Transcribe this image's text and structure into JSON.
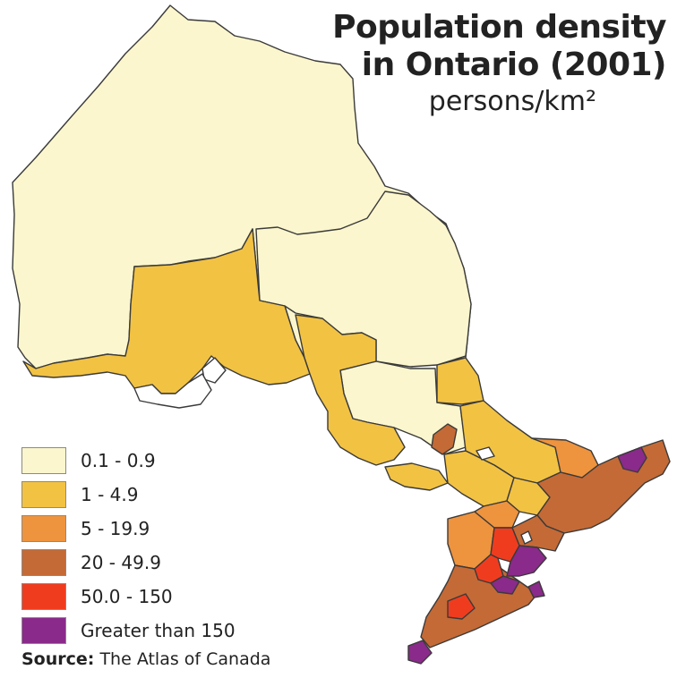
{
  "title_line1": "Population density",
  "title_line2": "in Ontario (2001)",
  "units": "persons/km²",
  "legend": [
    {
      "label": "0.1 - 0.9",
      "color": "#fbf6cd"
    },
    {
      "label": "1 - 4.9",
      "color": "#f2c243"
    },
    {
      "label": "5 - 19.9",
      "color": "#ee933e"
    },
    {
      "label": "20 - 49.9",
      "color": "#c46a36"
    },
    {
      "label": "50.0 - 150",
      "color": "#f03c1e"
    },
    {
      "label": "Greater than 150",
      "color": "#8a2a8a"
    }
  ],
  "source_label": "Source:",
  "source_text": "The Atlas of Canada"
}
